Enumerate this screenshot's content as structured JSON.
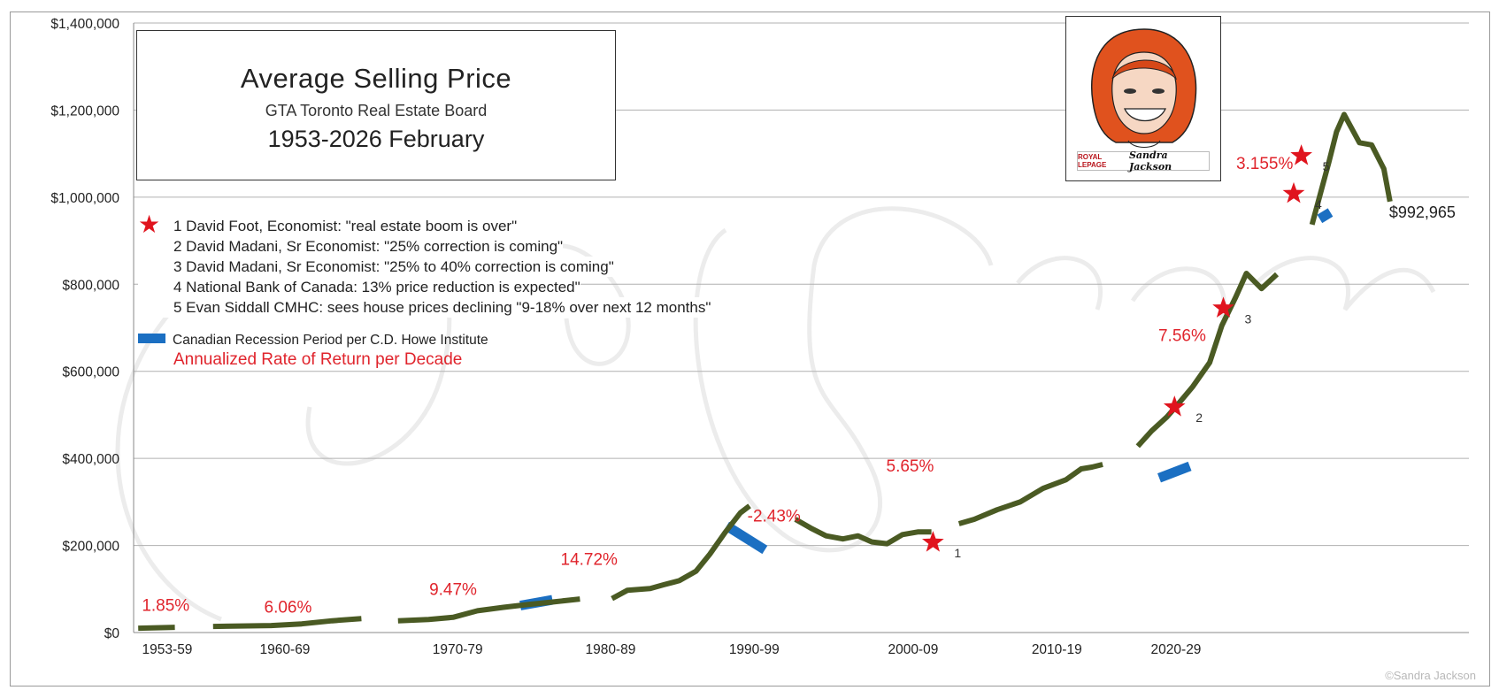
{
  "title": {
    "main": "Average Selling Price",
    "subtitle": "GTA Toronto Real Estate Board",
    "range": "1953-2026 February"
  },
  "notes": [
    {
      "text": "1  David Foot, Economist: \"real estate boom is over\""
    },
    {
      "text": "2 David Madani, Sr Economist: \"25% correction is coming\""
    },
    {
      "text": "3 David Madani, Sr Economist: \"25% to 40% correction is coming\""
    },
    {
      "text": "4 National Bank of Canada: 13% price reduction is expected\""
    },
    {
      "text": "5 Evan Siddall CMHC: sees house prices declining \"9-18% over next 12 months\""
    }
  ],
  "legend": {
    "recession": "Canadian Recession Period per C.D. Howe Institute",
    "return": "Annualized Rate of Return per Decade"
  },
  "portrait": {
    "brand": "ROYAL LEPAGE",
    "name": "Sandra Jackson"
  },
  "copyright": "©Sandra Jackson",
  "colors": {
    "line": "#4a5a23",
    "recession": "#1b6fc2",
    "accent": "#e0242c",
    "star": "#e0141e",
    "grid": "#b0b0b0"
  },
  "chart_data": {
    "type": "line",
    "ylim": [
      0,
      1400000
    ],
    "xlim": [
      1952,
      2034.5
    ],
    "y_ticks": [
      {
        "value": 0,
        "label": "$0"
      },
      {
        "value": 200000,
        "label": "$200,000"
      },
      {
        "value": 400000,
        "label": "$400,000"
      },
      {
        "value": 600000,
        "label": "$600,000"
      },
      {
        "value": 800000,
        "label": "$800,000"
      },
      {
        "value": 1000000,
        "label": "$1,000,000"
      },
      {
        "value": 1200000,
        "label": "$1,200,000"
      },
      {
        "value": 1400000,
        "label": "$1,400,000"
      }
    ],
    "x_labels": [
      {
        "label": "1953-59",
        "x": 1954.2
      },
      {
        "label": "1960-69",
        "x": 1961.9
      },
      {
        "label": "1970-79",
        "x": 1973.2
      },
      {
        "label": "1980-89",
        "x": 1983.2
      },
      {
        "label": "1990-99",
        "x": 1992.6
      },
      {
        "label": "2000-09",
        "x": 2003.0
      },
      {
        "label": "2010-19",
        "x": 2012.4
      },
      {
        "label": "2020-29",
        "x": 2020.2
      }
    ],
    "series": [
      {
        "segments": [
          [
            [
              1952.3,
              10000
            ],
            [
              1954.7,
              12000
            ]
          ],
          [
            [
              1957.2,
              14000
            ],
            [
              1959.0,
              15000
            ],
            [
              1961.0,
              16000
            ],
            [
              1963.0,
              20000
            ],
            [
              1965.0,
              27000
            ],
            [
              1966.9,
              32000
            ]
          ],
          [
            [
              1969.3,
              27000
            ],
            [
              1971.3,
              30000
            ],
            [
              1972.9,
              35000
            ],
            [
              1974.5,
              50000
            ],
            [
              1976.2,
              58000
            ],
            [
              1977.7,
              64000
            ],
            [
              1979.4,
              70000
            ],
            [
              1981.2,
              77000
            ]
          ],
          [
            [
              1983.3,
              78000
            ],
            [
              1984.3,
              97000
            ],
            [
              1985.8,
              101000
            ],
            [
              1986.7,
              110000
            ],
            [
              1987.7,
              119000
            ],
            [
              1988.8,
              141000
            ],
            [
              1989.7,
              180000
            ],
            [
              1990.7,
              230000
            ],
            [
              1991.7,
              275000
            ],
            [
              1992.3,
              291000
            ]
          ],
          [
            [
              1995.3,
              260000
            ],
            [
              1996.3,
              240000
            ],
            [
              1997.3,
              222000
            ],
            [
              1998.4,
              215000
            ],
            [
              1999.4,
              222000
            ],
            [
              2000.3,
              208000
            ],
            [
              2001.3,
              204000
            ],
            [
              2002.3,
              225000
            ],
            [
              2003.3,
              231000
            ],
            [
              2004.2,
              231000
            ]
          ],
          [
            [
              2006.0,
              250000
            ],
            [
              2007.0,
              260000
            ],
            [
              2008.5,
              282000
            ],
            [
              2010.0,
              300000
            ],
            [
              2011.5,
              331000
            ],
            [
              2013.0,
              351000
            ],
            [
              2014.0,
              376000
            ],
            [
              2014.7,
              380000
            ],
            [
              2015.4,
              386000
            ]
          ],
          [
            [
              2017.7,
              428000
            ],
            [
              2018.6,
              463000
            ],
            [
              2019.6,
              495000
            ],
            [
              2020.3,
              523000
            ],
            [
              2021.3,
              565000
            ],
            [
              2022.4,
              620000
            ],
            [
              2023.2,
              705000
            ],
            [
              2024.1,
              770000
            ],
            [
              2024.8,
              825000
            ],
            [
              2025.8,
              790000
            ],
            [
              2026.8,
              823000
            ]
          ],
          [
            [
              2029.1,
              937000
            ],
            [
              2030.2,
              1080000
            ],
            [
              2030.7,
              1150000
            ],
            [
              2031.2,
              1190000
            ],
            [
              2032.2,
              1125000
            ],
            [
              2033.0,
              1120000
            ],
            [
              2033.8,
              1065000
            ],
            [
              2034.2,
              990000
            ]
          ]
        ]
      }
    ],
    "last_value_label": {
      "text": "$992,965",
      "x": 2034.2,
      "y": 990000
    },
    "recessions": [
      [
        [
          1977.3,
          62000
        ],
        [
          1979.4,
          75000
        ]
      ],
      [
        [
          1990.8,
          245000
        ],
        [
          1993.3,
          190000
        ]
      ],
      [
        [
          2019.1,
          355000
        ],
        [
          2021.1,
          382000
        ]
      ],
      [
        [
          2029.6,
          950000
        ],
        [
          2030.3,
          965000
        ]
      ]
    ],
    "decade_returns": [
      {
        "label": "1.85%",
        "x": 1954.1,
        "y": 50000
      },
      {
        "label": "6.06%",
        "x": 1962.1,
        "y": 46000
      },
      {
        "label": "9.47%",
        "x": 1972.9,
        "y": 86000
      },
      {
        "label": "14.72%",
        "x": 1981.8,
        "y": 155000
      },
      {
        "label": "-2.43%",
        "x": 1993.9,
        "y": 255000
      },
      {
        "label": "5.65%",
        "x": 2002.8,
        "y": 370000
      },
      {
        "label": "7.56%",
        "x": 2020.6,
        "y": 670000
      },
      {
        "label": "3.155%",
        "x": 2026.0,
        "y": 1065000
      }
    ],
    "stars": [
      {
        "number": "1",
        "x": 2004.3,
        "y": 207000
      },
      {
        "number": "2",
        "x": 2020.1,
        "y": 518000
      },
      {
        "number": "3",
        "x": 2023.3,
        "y": 745000
      },
      {
        "number": "4",
        "x": 2027.9,
        "y": 1008000
      },
      {
        "number": "5",
        "x": 2028.4,
        "y": 1095000
      }
    ]
  }
}
